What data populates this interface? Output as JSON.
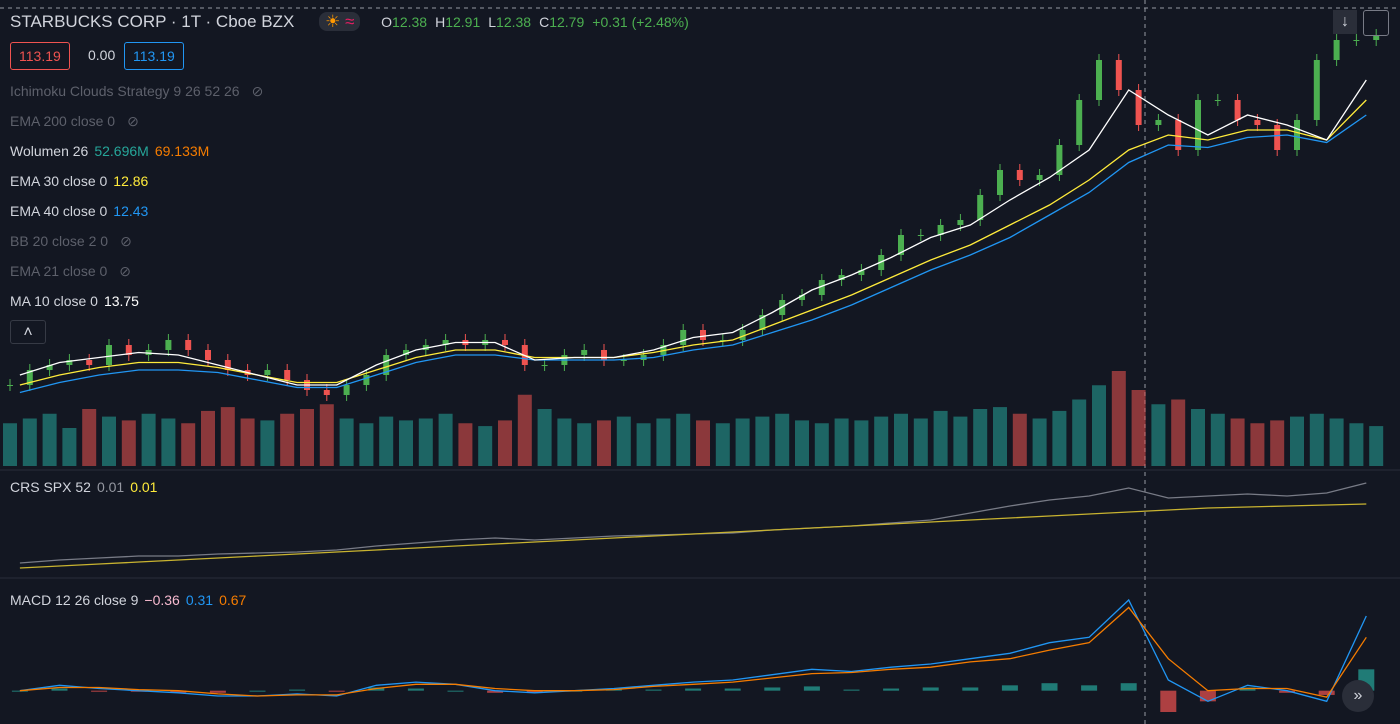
{
  "header": {
    "symbol": "STARBUCKS CORP · 1T · Cboe BZX",
    "ohlc": [
      {
        "label": "O",
        "value": "12.38"
      },
      {
        "label": "H",
        "value": "12.91"
      },
      {
        "label": "L",
        "value": "12.38"
      },
      {
        "label": "C",
        "value": "12.79"
      }
    ],
    "change": "+0.31 (+2.48%)"
  },
  "trade": {
    "sell": "113.19",
    "spread": "0.00",
    "buy": "113.19"
  },
  "indicators": [
    {
      "name": "Ichimoku Clouds Strategy 9 26 52 26",
      "hidden": true
    },
    {
      "name": "EMA 200 close 0",
      "hidden": true
    },
    {
      "name": "Wolumen 26",
      "values": [
        {
          "text": "52.696M",
          "color": "#26a69a"
        },
        {
          "text": "69.133M",
          "color": "#f57c00"
        }
      ]
    },
    {
      "name": "EMA 30 close 0",
      "values": [
        {
          "text": "12.86",
          "color": "#ffeb3b"
        }
      ]
    },
    {
      "name": "EMA 40 close 0",
      "values": [
        {
          "text": "12.43",
          "color": "#2196f3"
        }
      ]
    },
    {
      "name": "BB 20 close 2 0",
      "hidden": true
    },
    {
      "name": "EMA 21 close 0",
      "hidden": true
    },
    {
      "name": "MA 10 close 0",
      "values": [
        {
          "text": "13.75",
          "color": "#ffffff"
        }
      ]
    }
  ],
  "crs": {
    "name": "CRS SPX 52",
    "values": [
      {
        "text": "0.01",
        "color": "#9598a1"
      },
      {
        "text": "0.01",
        "color": "#ffeb3b"
      }
    ],
    "line": [
      0.05,
      0.08,
      0.1,
      0.12,
      0.12,
      0.14,
      0.15,
      0.16,
      0.18,
      0.22,
      0.25,
      0.28,
      0.3,
      0.28,
      0.3,
      0.32,
      0.33,
      0.34,
      0.35,
      0.38,
      0.4,
      0.42,
      0.45,
      0.48,
      0.55,
      0.62,
      0.68,
      0.72,
      0.8,
      0.7,
      0.72,
      0.74,
      0.72,
      0.75,
      0.85
    ],
    "trend": [
      0.0,
      0.02,
      0.04,
      0.06,
      0.08,
      0.1,
      0.12,
      0.14,
      0.16,
      0.18,
      0.2,
      0.22,
      0.24,
      0.26,
      0.28,
      0.3,
      0.32,
      0.34,
      0.36,
      0.38,
      0.4,
      0.42,
      0.44,
      0.46,
      0.48,
      0.5,
      0.52,
      0.54,
      0.56,
      0.58,
      0.6,
      0.61,
      0.62,
      0.63,
      0.64
    ]
  },
  "macd": {
    "name": "MACD 12 26 close 9",
    "values": [
      {
        "text": "−0.36",
        "color": "#f8bbd0"
      },
      {
        "text": "0.31",
        "color": "#2196f3"
      },
      {
        "text": "0.67",
        "color": "#f57c00"
      }
    ],
    "macd": [
      0,
      0.05,
      0.02,
      0.0,
      -0.02,
      -0.05,
      -0.05,
      -0.03,
      -0.05,
      0.05,
      0.08,
      0.06,
      0.0,
      -0.02,
      0.0,
      0.02,
      0.05,
      0.08,
      0.1,
      0.15,
      0.2,
      0.18,
      0.22,
      0.25,
      0.3,
      0.35,
      0.45,
      0.5,
      0.85,
      0.1,
      -0.1,
      0.05,
      0.0,
      -0.1,
      0.7
    ],
    "signal": [
      0,
      0.03,
      0.03,
      0.01,
      0.0,
      -0.03,
      -0.05,
      -0.04,
      -0.04,
      0.02,
      0.06,
      0.06,
      0.02,
      0.0,
      0.0,
      0.01,
      0.04,
      0.06,
      0.08,
      0.12,
      0.16,
      0.17,
      0.2,
      0.22,
      0.27,
      0.3,
      0.38,
      0.45,
      0.78,
      0.3,
      0.0,
      0.02,
      0.02,
      -0.06,
      0.5
    ],
    "hist": [
      0,
      0.02,
      -0.01,
      -0.01,
      -0.02,
      -0.02,
      0,
      0.01,
      -0.01,
      0.03,
      0.02,
      0,
      -0.02,
      -0.02,
      0,
      0.01,
      0.01,
      0.02,
      0.02,
      0.03,
      0.04,
      0.01,
      0.02,
      0.03,
      0.03,
      0.05,
      0.07,
      0.05,
      0.07,
      -0.2,
      -0.1,
      0.03,
      -0.02,
      -0.04,
      0.2
    ]
  },
  "price": {
    "closes": [
      6.3,
      6.6,
      6.7,
      6.8,
      6.7,
      7.1,
      6.9,
      7.0,
      7.2,
      7.0,
      6.8,
      6.6,
      6.5,
      6.6,
      6.4,
      6.2,
      6.1,
      6.3,
      6.5,
      6.9,
      7.0,
      7.1,
      7.2,
      7.1,
      7.2,
      7.1,
      6.7,
      6.7,
      6.9,
      7.0,
      6.8,
      6.8,
      6.9,
      7.1,
      7.4,
      7.2,
      7.2,
      7.4,
      7.7,
      8.0,
      8.1,
      8.4,
      8.5,
      8.6,
      8.9,
      9.3,
      9.3,
      9.5,
      9.6,
      10.1,
      10.6,
      10.4,
      10.5,
      11.1,
      12.0,
      12.8,
      12.2,
      11.5,
      11.6,
      11.0,
      12.0,
      12.0,
      11.6,
      11.5,
      11.0,
      11.6,
      12.8,
      13.2,
      13.2,
      13.3
    ],
    "ma10": [
      6.5,
      6.75,
      6.85,
      6.95,
      6.9,
      6.7,
      6.5,
      6.3,
      6.3,
      6.7,
      7.0,
      7.15,
      7.15,
      6.8,
      6.85,
      6.85,
      7.0,
      7.25,
      7.35,
      7.75,
      8.2,
      8.5,
      8.85,
      9.25,
      9.5,
      10.0,
      10.45,
      11.0,
      12.2,
      11.7,
      11.3,
      11.7,
      11.5,
      11.2,
      12.4
    ],
    "ema30": [
      6.3,
      6.5,
      6.65,
      6.75,
      6.75,
      6.65,
      6.5,
      6.35,
      6.35,
      6.6,
      6.85,
      7.0,
      7.0,
      6.85,
      6.85,
      6.85,
      6.95,
      7.1,
      7.2,
      7.5,
      7.8,
      8.1,
      8.45,
      8.8,
      9.1,
      9.5,
      9.9,
      10.4,
      11.0,
      11.3,
      11.2,
      11.4,
      11.4,
      11.2,
      12.0
    ],
    "ema40": [
      6.15,
      6.35,
      6.5,
      6.6,
      6.6,
      6.55,
      6.4,
      6.25,
      6.25,
      6.5,
      6.75,
      6.9,
      6.9,
      6.8,
      6.8,
      6.8,
      6.85,
      7.0,
      7.1,
      7.35,
      7.6,
      7.9,
      8.25,
      8.6,
      8.9,
      9.25,
      9.7,
      10.15,
      10.75,
      11.1,
      11.05,
      11.25,
      11.3,
      11.15,
      11.7
    ],
    "volume": [
      45,
      50,
      55,
      40,
      60,
      52,
      48,
      55,
      50,
      45,
      58,
      62,
      50,
      48,
      55,
      60,
      65,
      50,
      45,
      52,
      48,
      50,
      55,
      45,
      42,
      48,
      75,
      60,
      50,
      45,
      48,
      52,
      45,
      50,
      55,
      48,
      45,
      50,
      52,
      55,
      48,
      45,
      50,
      48,
      52,
      55,
      50,
      58,
      52,
      60,
      62,
      55,
      50,
      58,
      70,
      85,
      100,
      80,
      65,
      70,
      60,
      55,
      50,
      45,
      48,
      52,
      55,
      50,
      45,
      42
    ]
  }
}
